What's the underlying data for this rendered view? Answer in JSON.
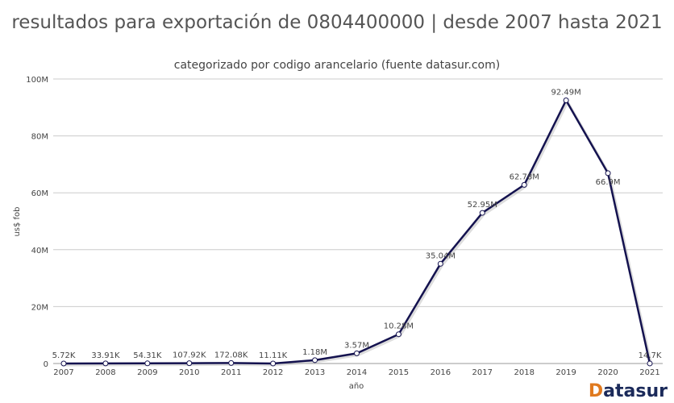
{
  "chart_data": {
    "type": "line",
    "title": "resultados para exportación de 0804400000 | desde 2007 hasta 2021",
    "subtitle": "categorizado por codigo arancelario (fuente datasur.com)",
    "xlabel": "año",
    "ylabel": "us$ fob",
    "ylim": [
      0,
      100000000
    ],
    "yticks": [
      "0",
      "20M",
      "40M",
      "60M",
      "80M",
      "100M"
    ],
    "ytick_values": [
      0,
      20000000,
      40000000,
      60000000,
      80000000,
      100000000
    ],
    "grid": true,
    "categories": [
      "2007",
      "2008",
      "2009",
      "2010",
      "2011",
      "2012",
      "2013",
      "2014",
      "2015",
      "2016",
      "2017",
      "2018",
      "2019",
      "2020",
      "2021"
    ],
    "values": [
      5720,
      33910,
      54310,
      107920,
      172080,
      11110,
      1180000,
      3570000,
      10280000,
      35040000,
      52950000,
      62780000,
      92490000,
      66900000,
      14700
    ],
    "data_labels": [
      "5.72K",
      "33.91K",
      "54.31K",
      "107.92K",
      "172.08K",
      "11.11K",
      "1.18M",
      "3.57M",
      "10.28M",
      "35.04M",
      "52.95M",
      "62.78M",
      "92.49M",
      "66.9M",
      "14.7K"
    ],
    "line_color": "#14124f"
  },
  "logo": {
    "prefix": "D",
    "rest": "atasur"
  }
}
